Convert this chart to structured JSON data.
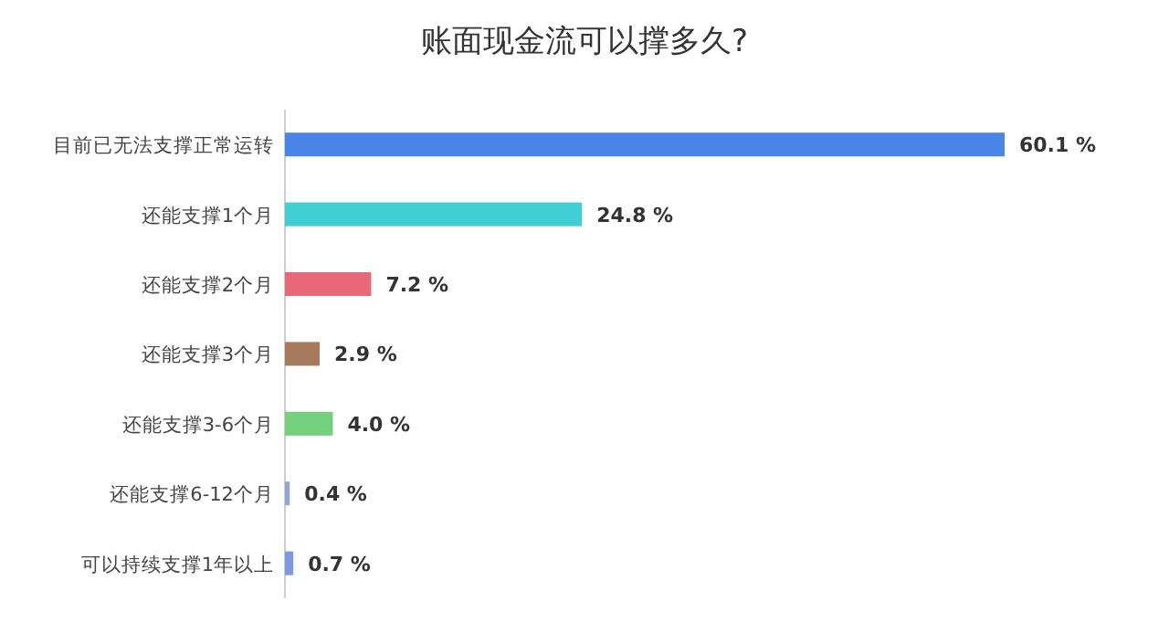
{
  "chart_data": {
    "type": "bar",
    "orientation": "horizontal",
    "title": "账面现金流可以撑多久?",
    "categories": [
      "目前已无法支撑正常运转",
      "还能支撑1个月",
      "还能支撑2个月",
      "还能支撑3个月",
      "还能支撑3-6个月",
      "还能支撑6-12个月",
      "可以持续支撑1年以上"
    ],
    "values": [
      60.1,
      24.8,
      7.2,
      2.9,
      4.0,
      0.4,
      0.7
    ],
    "value_labels": [
      "60.1 %",
      "24.8 %",
      "7.2 %",
      "2.9 %",
      "4.0 %",
      "0.4 %",
      "0.7 %"
    ],
    "colors": [
      "#4a86e8",
      "#3fcfd5",
      "#e86878",
      "#a87a5c",
      "#74d07c",
      "#8fa6d6",
      "#7b98e0"
    ]
  }
}
